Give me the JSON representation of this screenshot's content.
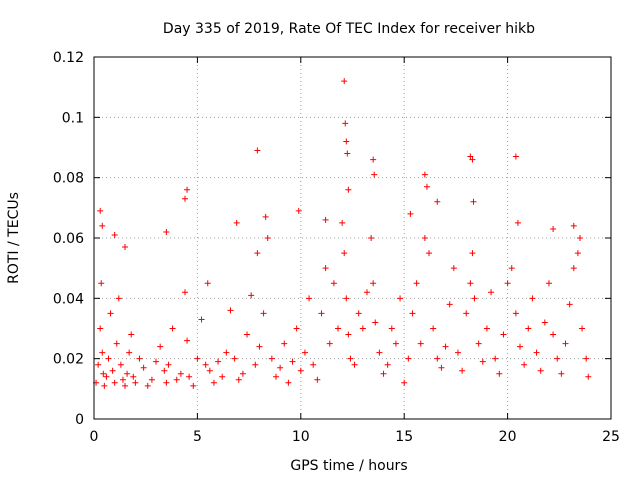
{
  "chart_data": {
    "type": "scatter",
    "title": "Day 335 of 2019, Rate Of TEC Index for receiver hikb",
    "xlabel": "GPS time / hours",
    "ylabel": "ROTI / TECUs",
    "xlim": [
      0,
      25
    ],
    "ylim": [
      0,
      0.12
    ],
    "xticks": [
      0,
      5,
      10,
      15,
      20,
      25
    ],
    "xtick_labels": [
      "0",
      "5",
      "10",
      "15",
      "20",
      "25"
    ],
    "yticks": [
      0,
      0.02,
      0.04,
      0.06,
      0.08,
      0.1,
      0.12
    ],
    "ytick_labels": [
      "0",
      "0.02",
      "0.04",
      "0.06",
      "0.08",
      "0.1",
      "0.12"
    ],
    "grid": true,
    "marker": "plus",
    "color": "#ff0000",
    "series": [
      {
        "name": "ROTI",
        "x": [
          0.1,
          0.2,
          0.3,
          0.35,
          0.4,
          0.45,
          0.5,
          0.6,
          0.7,
          0.8,
          0.9,
          1.0,
          1.1,
          1.2,
          1.3,
          1.4,
          1.5,
          1.6,
          1.7,
          1.8,
          1.9,
          2.0,
          2.2,
          2.4,
          2.6,
          2.8,
          3.0,
          3.2,
          3.4,
          3.5,
          3.6,
          3.8,
          4.0,
          4.2,
          4.4,
          4.5,
          4.6,
          4.8,
          5.0,
          5.2,
          5.4,
          5.5,
          5.6,
          5.8,
          6.0,
          6.2,
          6.4,
          6.6,
          6.8,
          7.0,
          7.2,
          7.4,
          7.6,
          7.8,
          7.9,
          8.0,
          8.2,
          8.4,
          8.6,
          8.8,
          9.0,
          9.2,
          9.4,
          9.6,
          9.8,
          10.0,
          10.2,
          10.4,
          10.6,
          10.8,
          11.0,
          11.2,
          11.4,
          11.6,
          11.8,
          12.0,
          12.1,
          12.2,
          12.3,
          12.4,
          12.6,
          12.8,
          13.0,
          13.2,
          13.4,
          13.5,
          13.6,
          13.8,
          14.0,
          14.2,
          14.4,
          14.6,
          14.8,
          15.0,
          15.2,
          15.4,
          15.6,
          15.8,
          16.0,
          16.2,
          16.4,
          16.6,
          16.8,
          17.0,
          17.2,
          17.4,
          17.6,
          17.8,
          18.0,
          18.2,
          18.3,
          18.4,
          18.6,
          18.8,
          19.0,
          19.2,
          19.4,
          19.6,
          19.8,
          20.0,
          20.2,
          20.4,
          20.6,
          20.8,
          21.0,
          21.2,
          21.4,
          21.6,
          21.8,
          22.0,
          22.2,
          22.4,
          22.6,
          22.8,
          23.0,
          23.2,
          23.4,
          23.6,
          23.8,
          23.9,
          0.3,
          0.4,
          1.0,
          1.5,
          3.5,
          4.5,
          4.4,
          6.9,
          7.9,
          8.3,
          9.9,
          11.2,
          12.1,
          12.15,
          12.2,
          12.25,
          12.3,
          13.5,
          13.55,
          15.3,
          16.0,
          16.1,
          16.6,
          18.2,
          18.3,
          18.35,
          20.4,
          20.5,
          22.2,
          23.2,
          23.5
        ],
        "y": [
          0.012,
          0.018,
          0.03,
          0.045,
          0.022,
          0.015,
          0.011,
          0.014,
          0.02,
          0.035,
          0.016,
          0.012,
          0.025,
          0.04,
          0.018,
          0.013,
          0.011,
          0.015,
          0.022,
          0.028,
          0.014,
          0.012,
          0.02,
          0.017,
          0.011,
          0.013,
          0.019,
          0.024,
          0.016,
          0.012,
          0.018,
          0.03,
          0.013,
          0.015,
          0.042,
          0.026,
          0.014,
          0.011,
          0.02,
          0.033,
          0.018,
          0.045,
          0.016,
          0.012,
          0.019,
          0.014,
          0.022,
          0.036,
          0.02,
          0.013,
          0.015,
          0.028,
          0.041,
          0.018,
          0.055,
          0.024,
          0.035,
          0.06,
          0.02,
          0.014,
          0.017,
          0.025,
          0.012,
          0.019,
          0.03,
          0.016,
          0.022,
          0.04,
          0.018,
          0.013,
          0.035,
          0.05,
          0.025,
          0.045,
          0.03,
          0.065,
          0.055,
          0.04,
          0.028,
          0.02,
          0.018,
          0.035,
          0.03,
          0.042,
          0.06,
          0.045,
          0.032,
          0.022,
          0.015,
          0.018,
          0.03,
          0.025,
          0.04,
          0.012,
          0.02,
          0.035,
          0.045,
          0.025,
          0.06,
          0.055,
          0.03,
          0.02,
          0.017,
          0.024,
          0.038,
          0.05,
          0.022,
          0.016,
          0.035,
          0.045,
          0.055,
          0.04,
          0.025,
          0.019,
          0.03,
          0.042,
          0.02,
          0.015,
          0.028,
          0.045,
          0.05,
          0.035,
          0.024,
          0.018,
          0.03,
          0.04,
          0.022,
          0.016,
          0.032,
          0.045,
          0.028,
          0.02,
          0.015,
          0.025,
          0.038,
          0.05,
          0.055,
          0.03,
          0.02,
          0.014,
          0.069,
          0.064,
          0.061,
          0.057,
          0.062,
          0.076,
          0.073,
          0.065,
          0.089,
          0.067,
          0.069,
          0.066,
          0.112,
          0.098,
          0.092,
          0.088,
          0.076,
          0.086,
          0.081,
          0.068,
          0.081,
          0.077,
          0.072,
          0.087,
          0.086,
          0.072,
          0.087,
          0.065,
          0.063,
          0.064,
          0.06
        ]
      }
    ]
  }
}
